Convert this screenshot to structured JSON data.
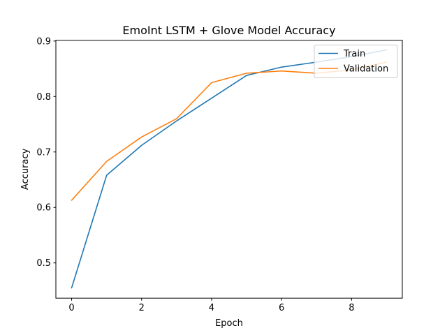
{
  "chart_data": {
    "type": "line",
    "title": "EmoInt LSTM + Glove Model Accuracy",
    "xlabel": "Epoch",
    "ylabel": "Accuracy",
    "x": [
      0,
      1,
      2,
      3,
      4,
      5,
      6,
      7,
      8,
      9
    ],
    "xlim": [
      -0.45,
      9.45
    ],
    "ylim": [
      0.4365,
      0.9015
    ],
    "xticks": [
      0,
      2,
      4,
      6,
      8
    ],
    "yticks": [
      0.5,
      0.6,
      0.7,
      0.8,
      0.9
    ],
    "grid": false,
    "legend_position": "upper right",
    "series": [
      {
        "name": "Train",
        "color": "#1f77b4",
        "values": [
          0.455,
          0.658,
          0.712,
          0.756,
          0.797,
          0.838,
          0.853,
          0.862,
          0.872,
          0.884
        ]
      },
      {
        "name": "Validation",
        "color": "#ff7f0e",
        "values": [
          0.613,
          0.683,
          0.727,
          0.76,
          0.825,
          0.842,
          0.846,
          0.842,
          0.848,
          0.862
        ]
      }
    ]
  }
}
